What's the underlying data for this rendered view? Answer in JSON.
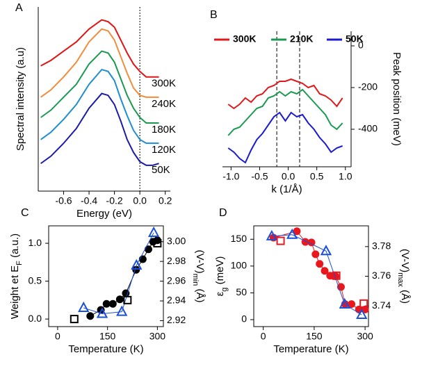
{
  "chart_data": [
    {
      "type": "line",
      "panel": "A",
      "xlabel": "Energy (eV)",
      "ylabel": "Spectral intensity (a.u)",
      "x": [
        -0.78,
        -0.7,
        -0.6,
        -0.5,
        -0.4,
        -0.3,
        -0.25,
        -0.2,
        -0.15,
        -0.1,
        -0.05,
        0,
        0.05,
        0.1,
        0.15
      ],
      "xlim": [
        -0.8,
        0.24
      ],
      "xticks": [
        -0.6,
        -0.4,
        -0.2,
        {
          "value": 0,
          "label": "0.0"
        },
        0.2
      ],
      "ylim": [
        0,
        100
      ],
      "vlines": [
        0
      ],
      "series_labels": "right",
      "series": [
        {
          "name": "300K",
          "color": "#e01414",
          "values": [
            68,
            71,
            76,
            81,
            88,
            93,
            92,
            89,
            82,
            75,
            69,
            65,
            62,
            62,
            62
          ]
        },
        {
          "name": "240K",
          "color": "#f08c3c",
          "values": [
            51,
            55,
            62,
            70,
            81,
            88,
            87,
            82,
            73,
            64,
            56,
            52,
            51,
            51,
            51
          ]
        },
        {
          "name": "180K",
          "color": "#1a9a50",
          "values": [
            40,
            44,
            51,
            58,
            69,
            76,
            75,
            70,
            61,
            52,
            45,
            40,
            37,
            37,
            37
          ]
        },
        {
          "name": "120K",
          "color": "#1e8ed0",
          "values": [
            28,
            32,
            39,
            47,
            58,
            66,
            65,
            60,
            50,
            41,
            33,
            28,
            26,
            26,
            26
          ]
        },
        {
          "name": "50K",
          "color": "#1a1aa8",
          "values": [
            15,
            19,
            26,
            34,
            45,
            53,
            52,
            47,
            38,
            28,
            21,
            16,
            14,
            14,
            15
          ]
        }
      ]
    },
    {
      "type": "line",
      "panel": "B",
      "xlabel": "k (1/Å)",
      "ylabel": "Peak position (meV)",
      "y_axis_side": "right",
      "legend": "top",
      "x": [
        -1.05,
        -0.95,
        -0.85,
        -0.75,
        -0.65,
        -0.55,
        -0.45,
        -0.35,
        -0.25,
        -0.15,
        -0.05,
        0.05,
        0.15,
        0.25,
        0.35,
        0.45,
        0.55,
        0.65,
        0.75,
        0.85,
        0.95
      ],
      "xlim": [
        -1.15,
        1.1
      ],
      "xticks": [
        {
          "value": -1,
          "label": "-1.0"
        },
        -0.5,
        {
          "value": 0,
          "label": "0.0"
        },
        0.5,
        {
          "value": 1,
          "label": "1.0"
        }
      ],
      "ylim": [
        -580,
        70
      ],
      "yticks": [
        0,
        -200,
        -400
      ],
      "vlines": [
        -0.2,
        0.2
      ],
      "series": [
        {
          "name": "300K",
          "color": "#e0191b",
          "values": [
            -280,
            -300,
            -280,
            -250,
            -270,
            -240,
            -230,
            -200,
            -190,
            -170,
            -170,
            -160,
            -170,
            -180,
            -200,
            -190,
            -230,
            -240,
            -260,
            -290,
            -250
          ]
        },
        {
          "name": "210K",
          "color": "#1a9a50",
          "values": [
            -430,
            -400,
            -390,
            -360,
            -330,
            -300,
            -290,
            -250,
            -240,
            -220,
            -240,
            -220,
            -230,
            -210,
            -240,
            -270,
            -300,
            -330,
            -380,
            -400,
            -370
          ]
        },
        {
          "name": "50K",
          "color": "#1a1ad0",
          "values": [
            -490,
            -510,
            -540,
            -560,
            -500,
            -450,
            -420,
            -380,
            -340,
            -320,
            -360,
            -320,
            -340,
            -330,
            -370,
            -400,
            -440,
            -470,
            -510,
            -490,
            -480
          ]
        }
      ]
    },
    {
      "type": "scatter",
      "panel": "C",
      "xlabel": "Temperature (K)",
      "ylabel": [
        "Weight et E",
        "F",
        " (a.u.)"
      ],
      "y2label": [
        "(V-V)",
        "min",
        " (Å)"
      ],
      "xlim": [
        -27,
        318
      ],
      "xticks": [
        0,
        150,
        300
      ],
      "ylim": [
        -0.1,
        1.23
      ],
      "yticks": [
        {
          "value": 0,
          "label": "0.0"
        },
        0.5,
        {
          "value": 1,
          "label": "1.0"
        }
      ],
      "y2lim": [
        2.914,
        3.016
      ],
      "y2ticks": [
        2.92,
        2.94,
        2.96,
        2.98,
        {
          "value": 3,
          "label": "3.00"
        }
      ],
      "series": [
        {
          "color": "#000000",
          "marker": "circle",
          "filled": true,
          "line": true,
          "x": [
            98,
            130,
            147,
            166,
            187,
            205,
            236,
            256,
            273,
            287,
            300
          ],
          "values": [
            0.04,
            0.12,
            0.2,
            0.2,
            0.26,
            0.34,
            0.65,
            0.79,
            0.92,
            1.02,
            1.04
          ]
        },
        {
          "color": "#1a4fd8",
          "marker": "triangle",
          "filled": false,
          "line": true,
          "axis": "y2",
          "x": [
            78,
            134,
            193,
            237,
            289
          ],
          "values": [
            2.933,
            2.927,
            2.929,
            2.976,
            3.009
          ]
        },
        {
          "color": "#000000",
          "marker": "square",
          "filled": false,
          "line": false,
          "x": [
            50,
            210,
            300
          ],
          "values": [
            0.0,
            0.25,
            1.0
          ]
        }
      ]
    },
    {
      "type": "scatter",
      "panel": "D",
      "xlabel": "Temperature (K)",
      "ylabel": [
        "ε",
        "g",
        " (meV)"
      ],
      "y2label": [
        "(V-V)",
        "max",
        " (Å)"
      ],
      "xlim": [
        -28,
        310
      ],
      "xticks": [
        0,
        150,
        300
      ],
      "ylim": [
        -13,
        175
      ],
      "yticks": [
        0,
        50,
        100,
        150
      ],
      "y2lim": [
        3.726,
        3.794
      ],
      "y2ticks": [
        3.74,
        3.76,
        3.78
      ],
      "series": [
        {
          "color": "#e8181e",
          "marker": "circle",
          "filled": true,
          "line": true,
          "x": [
            30,
            99,
            124,
            142,
            154,
            166,
            181,
            197,
            213,
            229,
            241,
            260,
            282,
            300
          ],
          "values": [
            153,
            165,
            145,
            144,
            122,
            104,
            91,
            82,
            81,
            61,
            29,
            29,
            19,
            19
          ]
        },
        {
          "color": "#1a4fd8",
          "marker": "triangle",
          "filled": false,
          "line": true,
          "axis": "y2",
          "x": [
            25,
            85,
            185,
            240,
            290
          ],
          "values": [
            3.787,
            3.788,
            3.777,
            3.741,
            3.734
          ]
        },
        {
          "color": "#e8181e",
          "marker": "square",
          "filled": false,
          "line": false,
          "x": [
            51,
            215,
            296
          ],
          "values": [
            147,
            82,
            30
          ]
        }
      ]
    }
  ]
}
